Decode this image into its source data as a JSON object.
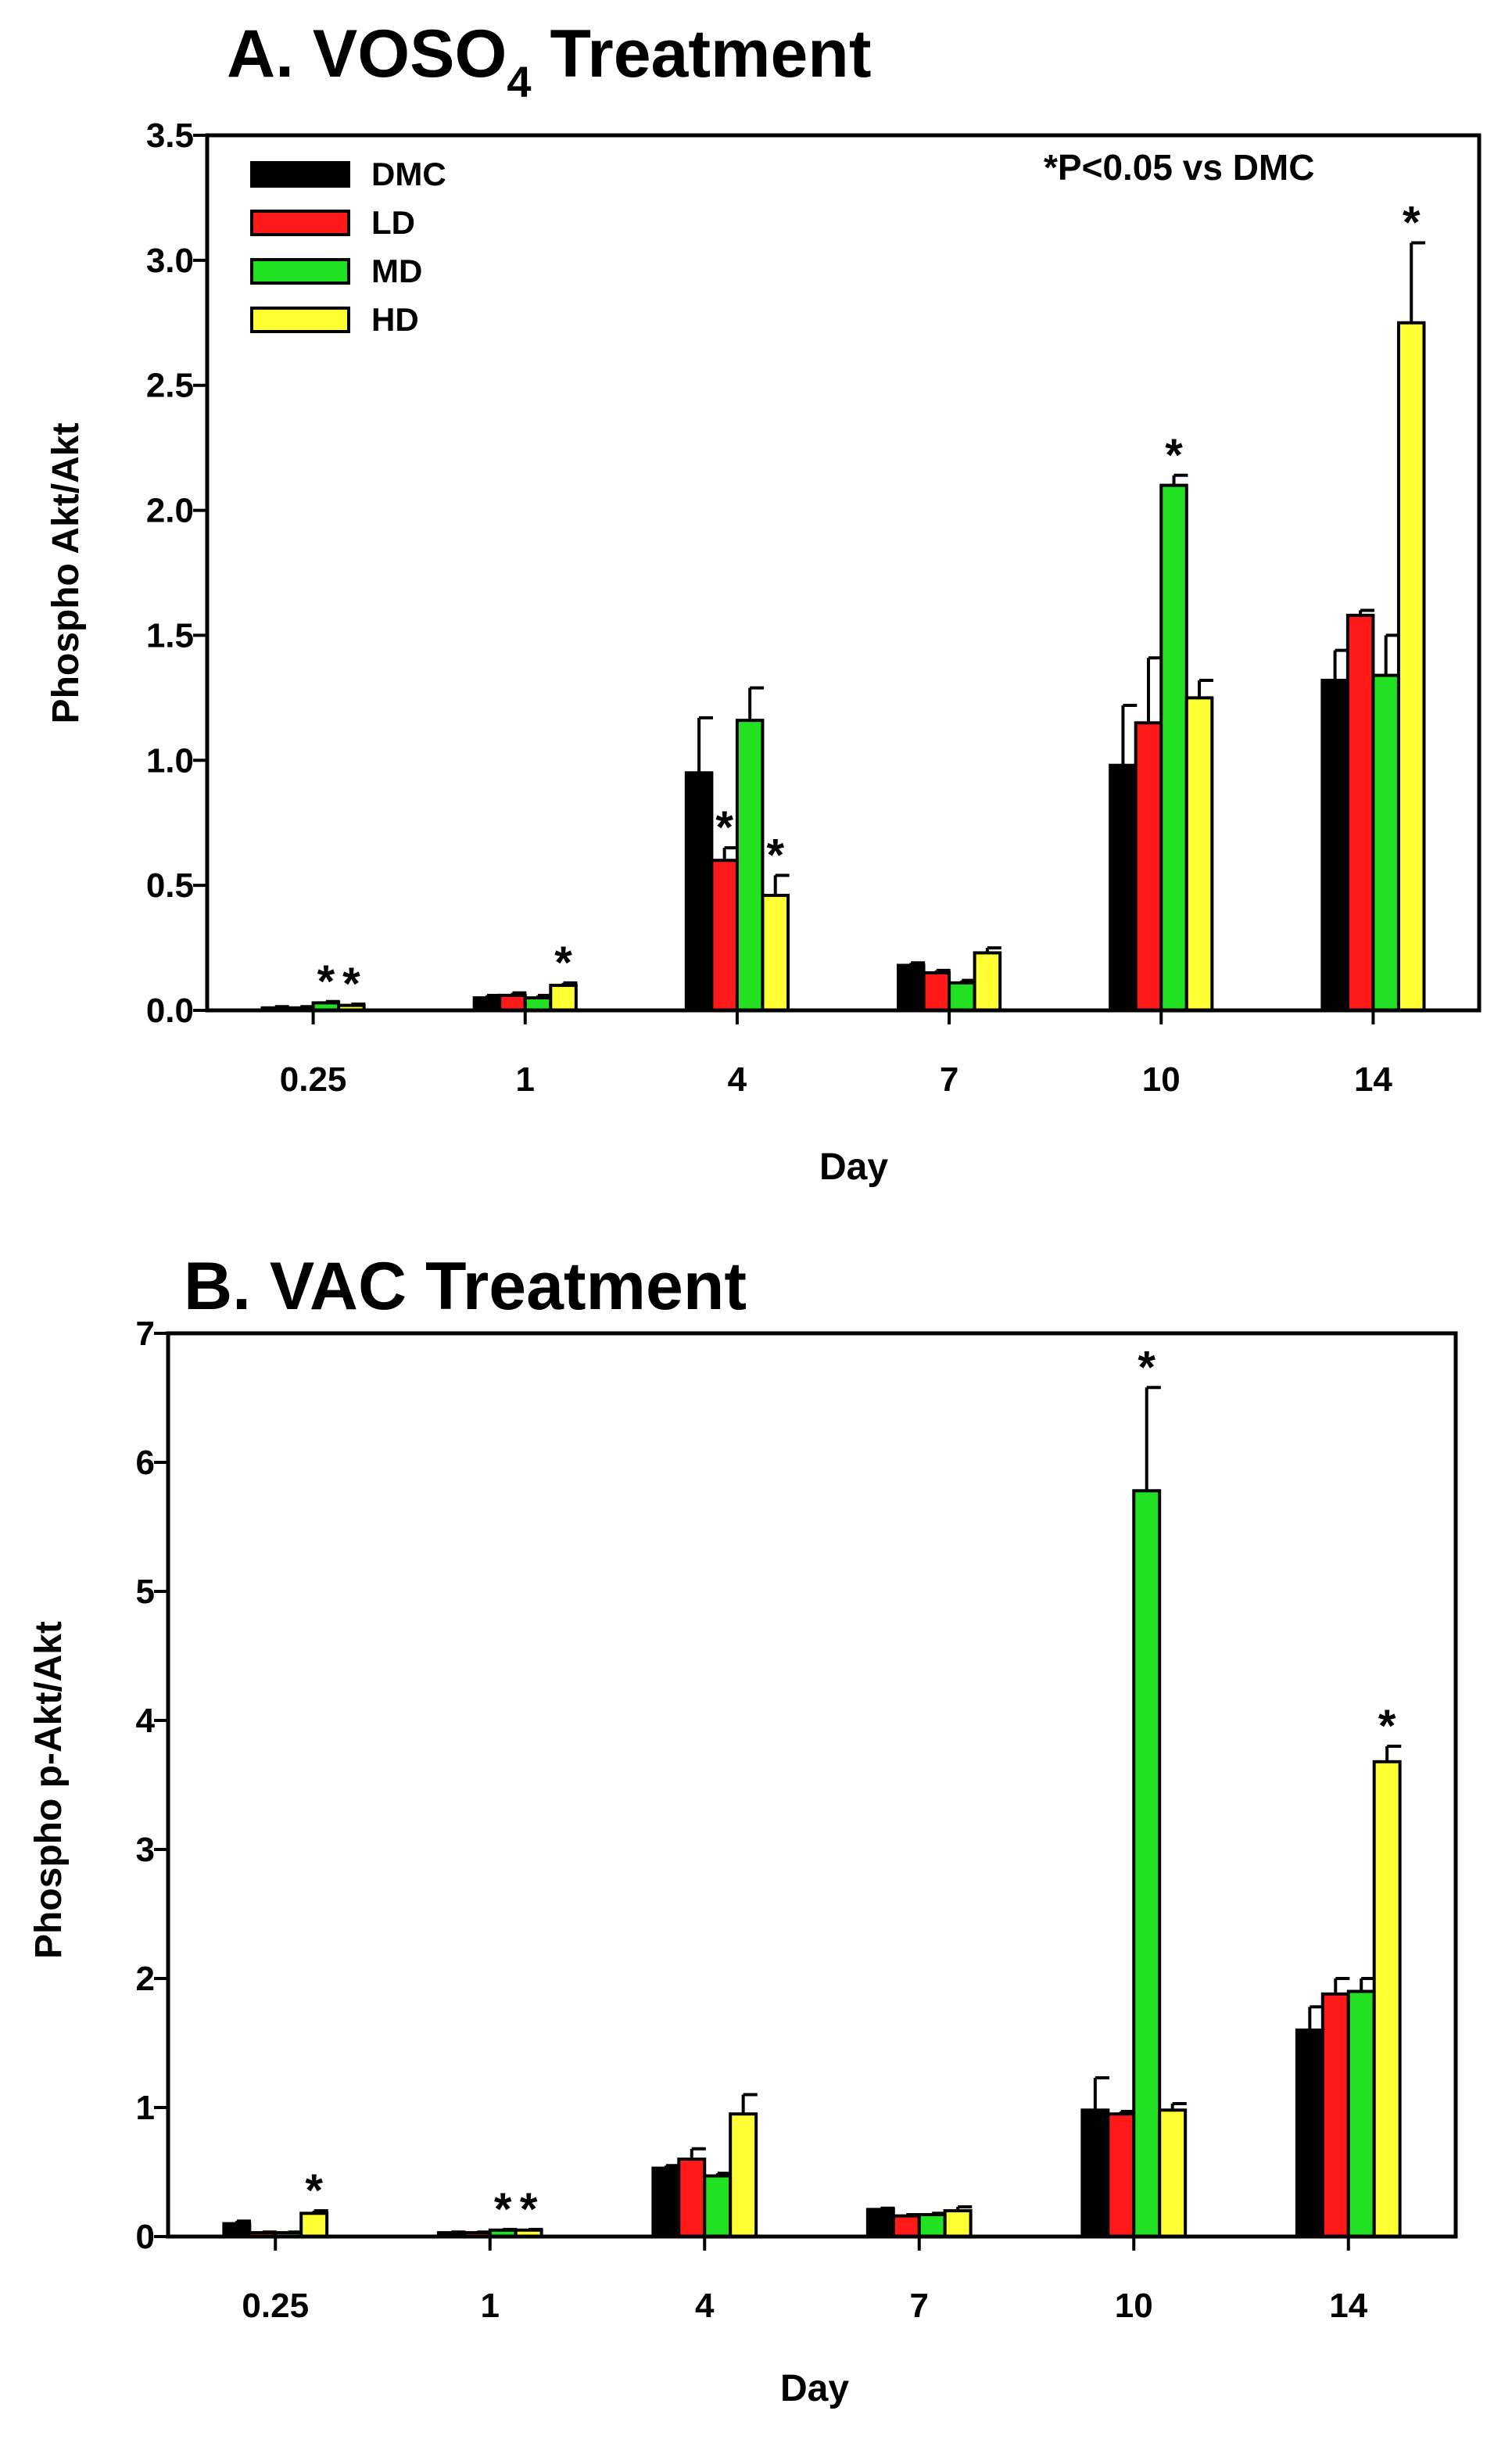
{
  "colors": {
    "DMC": "#000000",
    "LD": "#ff1a1a",
    "MD": "#22e022",
    "HD": "#ffff33",
    "axis": "#000000"
  },
  "chart_data": [
    {
      "type": "bar",
      "title": "A. VOSO",
      "title_subscript": "4",
      "title_suffix": " Treatment",
      "xlabel": "Day",
      "ylabel": "Phospho Akt/Akt",
      "annotation": "*P<0.05 vs DMC",
      "ylim": [
        0,
        3.5
      ],
      "yticks": [
        "0.0",
        "0.5",
        "1.0",
        "1.5",
        "2.0",
        "2.5",
        "3.0",
        "3.5"
      ],
      "ytick_values": [
        0,
        0.5,
        1.0,
        1.5,
        2.0,
        2.5,
        3.0,
        3.5
      ],
      "categories": [
        "0.25",
        "1",
        "4",
        "7",
        "10",
        "14"
      ],
      "legend": [
        "DMC",
        "LD",
        "MD",
        "HD"
      ],
      "series": [
        {
          "name": "DMC",
          "values": [
            0.01,
            0.05,
            0.95,
            0.18,
            0.98,
            1.32
          ],
          "errors": [
            0.005,
            0.01,
            0.22,
            0.01,
            0.24,
            0.12
          ],
          "sig": [
            "",
            "",
            "",
            "",
            "",
            ""
          ]
        },
        {
          "name": "LD",
          "values": [
            0.01,
            0.06,
            0.6,
            0.15,
            1.15,
            1.58
          ],
          "errors": [
            0.005,
            0.01,
            0.05,
            0.01,
            0.26,
            0.02
          ],
          "sig": [
            "",
            "",
            "*",
            "",
            "",
            ""
          ]
        },
        {
          "name": "MD",
          "values": [
            0.03,
            0.05,
            1.16,
            0.11,
            2.1,
            1.34
          ],
          "errors": [
            0.005,
            0.01,
            0.13,
            0.01,
            0.04,
            0.16
          ],
          "sig": [
            "*",
            "",
            "",
            "",
            "*",
            ""
          ]
        },
        {
          "name": "HD",
          "values": [
            0.02,
            0.1,
            0.46,
            0.23,
            1.25,
            2.75
          ],
          "errors": [
            0.005,
            0.01,
            0.08,
            0.02,
            0.07,
            0.32
          ],
          "sig": [
            "*",
            "*",
            "*",
            "",
            "",
            "*"
          ]
        }
      ]
    },
    {
      "type": "bar",
      "title": "B. VAC Treatment",
      "xlabel": "Day",
      "ylabel": "Phospho p-Akt/Akt",
      "ylim": [
        0,
        7
      ],
      "yticks": [
        "0",
        "1",
        "2",
        "3",
        "4",
        "5",
        "6",
        "7"
      ],
      "ytick_values": [
        0,
        1,
        2,
        3,
        4,
        5,
        6,
        7
      ],
      "categories": [
        "0.25",
        "1",
        "4",
        "7",
        "10",
        "14"
      ],
      "series": [
        {
          "name": "DMC",
          "values": [
            0.1,
            0.03,
            0.53,
            0.21,
            0.98,
            1.6
          ],
          "errors": [
            0.02,
            0.005,
            0.02,
            0.01,
            0.25,
            0.18
          ],
          "sig": [
            "",
            "",
            "",
            "",
            "",
            ""
          ]
        },
        {
          "name": "LD",
          "values": [
            0.03,
            0.03,
            0.6,
            0.16,
            0.95,
            1.88
          ],
          "errors": [
            0.005,
            0.005,
            0.08,
            0.01,
            0.02,
            0.12
          ],
          "sig": [
            "",
            "",
            "",
            "",
            "",
            ""
          ]
        },
        {
          "name": "MD",
          "values": [
            0.03,
            0.05,
            0.47,
            0.17,
            5.78,
            1.9
          ],
          "errors": [
            0.005,
            0.005,
            0.02,
            0.01,
            0.8,
            0.1
          ],
          "sig": [
            "",
            "*",
            "",
            "",
            "*",
            ""
          ]
        },
        {
          "name": "HD",
          "values": [
            0.18,
            0.05,
            0.95,
            0.2,
            0.98,
            3.68
          ],
          "errors": [
            0.02,
            0.005,
            0.15,
            0.03,
            0.05,
            0.12
          ],
          "sig": [
            "*",
            "*",
            "",
            "",
            "",
            "*"
          ]
        }
      ]
    }
  ]
}
